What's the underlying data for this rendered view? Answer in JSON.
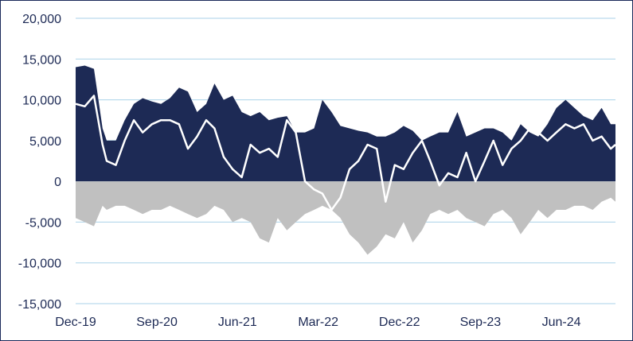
{
  "chart_data": {
    "type": "area",
    "title": "",
    "xlabel": "",
    "ylabel": "",
    "ylim": [
      -15000,
      20000
    ],
    "y_ticks": [
      "20,000",
      "15,000",
      "10,000",
      "5,000",
      "0",
      "-5,000",
      "-10,000",
      "-15,000"
    ],
    "y_tick_values": [
      20000,
      15000,
      10000,
      5000,
      0,
      -5000,
      -10000,
      -15000
    ],
    "x_ticks": [
      "Dec-19",
      "Sep-20",
      "Jun-21",
      "Mar-22",
      "Dec-22",
      "Sep-23",
      "Jun-24"
    ],
    "x_tick_dates": [
      "2019-12",
      "2020-09",
      "2021-06",
      "2022-03",
      "2022-12",
      "2023-09",
      "2024-06"
    ],
    "x_range": [
      "2019-12",
      "2024-12"
    ],
    "grid": true,
    "colors": {
      "positive_area": "#1d2a55",
      "negative_area": "#c0c0c0",
      "line": "#ffffff",
      "grid": "#a9d2e8",
      "axis_text": "#1d2a55"
    },
    "series": [
      {
        "role": "positive_area",
        "x": [
          "2019-12-01",
          "2020-01-01",
          "2020-02-01",
          "2020-03-01",
          "2020-03-15",
          "2020-04-15",
          "2020-05-15",
          "2020-06-15",
          "2020-07-15",
          "2020-08-15",
          "2020-09-15",
          "2020-10-15",
          "2020-11-15",
          "2020-12-15",
          "2021-01-15",
          "2021-02-15",
          "2021-03-15",
          "2021-04-15",
          "2021-05-15",
          "2021-06-15",
          "2021-07-15",
          "2021-08-15",
          "2021-09-15",
          "2021-10-15",
          "2021-11-15",
          "2021-12-15",
          "2022-01-15",
          "2022-02-15",
          "2022-03-15",
          "2022-04-15",
          "2022-05-15",
          "2022-06-15",
          "2022-07-15",
          "2022-08-15",
          "2022-09-15",
          "2022-10-15",
          "2022-11-15",
          "2022-12-15",
          "2023-01-15",
          "2023-02-15",
          "2023-03-15",
          "2023-04-15",
          "2023-05-15",
          "2023-06-15",
          "2023-07-15",
          "2023-08-15",
          "2023-09-15",
          "2023-10-15",
          "2023-11-15",
          "2023-12-15",
          "2024-01-15",
          "2024-02-15",
          "2024-03-15",
          "2024-04-15",
          "2024-05-15",
          "2024-06-15",
          "2024-07-15",
          "2024-08-15",
          "2024-09-15",
          "2024-10-15",
          "2024-11-15",
          "2024-12-01"
        ],
        "values": [
          14000,
          14200,
          13800,
          6500,
          5000,
          5000,
          7500,
          9500,
          10200,
          9800,
          9500,
          10200,
          11500,
          11000,
          8500,
          9500,
          12000,
          10000,
          10500,
          8500,
          8000,
          8500,
          7500,
          7800,
          8000,
          6000,
          6000,
          6500,
          10000,
          8500,
          6800,
          6500,
          6200,
          6000,
          5500,
          5500,
          6000,
          6800,
          6200,
          5000,
          5500,
          6000,
          6000,
          8500,
          5500,
          6000,
          6500,
          6500,
          6000,
          5000,
          7000,
          6000,
          5500,
          7000,
          9000,
          10000,
          9000,
          8000,
          7500,
          9000,
          7000,
          7000
        ]
      },
      {
        "role": "negative_area",
        "x": [
          "2019-12-01",
          "2020-01-01",
          "2020-02-01",
          "2020-03-01",
          "2020-03-15",
          "2020-04-15",
          "2020-05-15",
          "2020-06-15",
          "2020-07-15",
          "2020-08-15",
          "2020-09-15",
          "2020-10-15",
          "2020-11-15",
          "2020-12-15",
          "2021-01-15",
          "2021-02-15",
          "2021-03-15",
          "2021-04-15",
          "2021-05-15",
          "2021-06-15",
          "2021-07-15",
          "2021-08-15",
          "2021-09-15",
          "2021-10-15",
          "2021-11-15",
          "2021-12-15",
          "2022-01-15",
          "2022-02-15",
          "2022-03-15",
          "2022-04-15",
          "2022-05-15",
          "2022-06-15",
          "2022-07-15",
          "2022-08-15",
          "2022-09-15",
          "2022-10-15",
          "2022-11-15",
          "2022-12-15",
          "2023-01-15",
          "2023-02-15",
          "2023-03-15",
          "2023-04-15",
          "2023-05-15",
          "2023-06-15",
          "2023-07-15",
          "2023-08-15",
          "2023-09-15",
          "2023-10-15",
          "2023-11-15",
          "2023-12-15",
          "2024-01-15",
          "2024-02-15",
          "2024-03-15",
          "2024-04-15",
          "2024-05-15",
          "2024-06-15",
          "2024-07-15",
          "2024-08-15",
          "2024-09-15",
          "2024-10-15",
          "2024-11-15",
          "2024-12-01"
        ],
        "values": [
          -4500,
          -5000,
          -5500,
          -3000,
          -3500,
          -3000,
          -3000,
          -3500,
          -4000,
          -3500,
          -3500,
          -3000,
          -3500,
          -4000,
          -4500,
          -4000,
          -3000,
          -3500,
          -5000,
          -4500,
          -5000,
          -7000,
          -7500,
          -4500,
          -6000,
          -5000,
          -4000,
          -3500,
          -3000,
          -3500,
          -4500,
          -6500,
          -7500,
          -9000,
          -8000,
          -6500,
          -7000,
          -5000,
          -7500,
          -6000,
          -4000,
          -3500,
          -4000,
          -3500,
          -4500,
          -5000,
          -5500,
          -4000,
          -3500,
          -4500,
          -6500,
          -5000,
          -3500,
          -4500,
          -3500,
          -3500,
          -3000,
          -3000,
          -3500,
          -2500,
          -2000,
          -2500
        ]
      },
      {
        "role": "line",
        "x": [
          "2019-12-01",
          "2020-01-01",
          "2020-02-01",
          "2020-03-01",
          "2020-03-15",
          "2020-04-15",
          "2020-05-15",
          "2020-06-15",
          "2020-07-15",
          "2020-08-15",
          "2020-09-15",
          "2020-10-15",
          "2020-11-15",
          "2020-12-15",
          "2021-01-15",
          "2021-02-15",
          "2021-03-15",
          "2021-04-15",
          "2021-05-15",
          "2021-06-15",
          "2021-07-15",
          "2021-08-15",
          "2021-09-15",
          "2021-10-15",
          "2021-11-15",
          "2021-12-15",
          "2022-01-15",
          "2022-02-15",
          "2022-03-15",
          "2022-04-15",
          "2022-05-15",
          "2022-06-15",
          "2022-07-15",
          "2022-08-15",
          "2022-09-15",
          "2022-10-15",
          "2022-11-15",
          "2022-12-15",
          "2023-01-15",
          "2023-02-15",
          "2023-03-15",
          "2023-04-15",
          "2023-05-15",
          "2023-06-15",
          "2023-07-15",
          "2023-08-15",
          "2023-09-15",
          "2023-10-15",
          "2023-11-15",
          "2023-12-15",
          "2024-01-15",
          "2024-02-15",
          "2024-03-15",
          "2024-04-15",
          "2024-05-15",
          "2024-06-15",
          "2024-07-15",
          "2024-08-15",
          "2024-09-15",
          "2024-10-15",
          "2024-11-15",
          "2024-12-01"
        ],
        "values": [
          9500,
          9200,
          10500,
          4500,
          2500,
          2000,
          5000,
          7500,
          6000,
          7000,
          7500,
          7500,
          7000,
          4000,
          5500,
          7500,
          6500,
          3000,
          1500,
          500,
          4500,
          3500,
          4000,
          3000,
          7500,
          6000,
          0,
          -1000,
          -1500,
          -3500,
          -2000,
          1500,
          2500,
          4500,
          4000,
          -2500,
          2000,
          1500,
          3500,
          5000,
          2500,
          -500,
          1000,
          500,
          3500,
          0,
          2500,
          5000,
          2000,
          4000,
          5000,
          6500,
          6000,
          5000,
          6000,
          7000,
          6500,
          7000,
          5000,
          5500,
          4000,
          4500
        ]
      }
    ]
  }
}
